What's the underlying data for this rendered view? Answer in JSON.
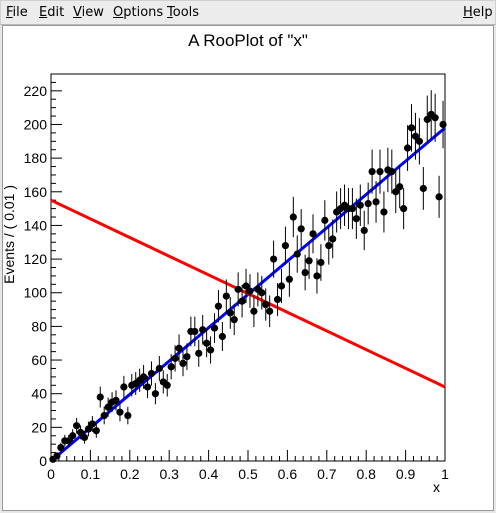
{
  "menubar": {
    "items": [
      {
        "label": "File",
        "accel": "F",
        "rest": "ile"
      },
      {
        "label": "Edit",
        "accel": "E",
        "rest": "dit"
      },
      {
        "label": "View",
        "accel": "V",
        "rest": "iew"
      },
      {
        "label": "Options",
        "accel": "O",
        "rest": "ptions"
      },
      {
        "label": "Tools",
        "accel": "T",
        "rest": "ools"
      }
    ],
    "help": {
      "label": "Help",
      "accel": "H",
      "rest": "elp"
    }
  },
  "chart_data": {
    "type": "scatter",
    "title": "A RooPlot of \"x\"",
    "xlabel": "x",
    "ylabel": "Events / ( 0.01 )",
    "xlim": [
      0,
      1
    ],
    "ylim": [
      0,
      230
    ],
    "x_ticks": [
      "0",
      "0.1",
      "0.2",
      "0.3",
      "0.4",
      "0.5",
      "0.6",
      "0.7",
      "0.8",
      "0.9",
      "1"
    ],
    "y_ticks": [
      "0",
      "20",
      "40",
      "60",
      "80",
      "100",
      "120",
      "140",
      "160",
      "180",
      "200",
      "220"
    ],
    "grid": false,
    "series": [
      {
        "kind": "points_with_errors",
        "color": "#000000",
        "x": [
          0.005,
          0.015,
          0.025,
          0.035,
          0.045,
          0.055,
          0.065,
          0.075,
          0.085,
          0.095,
          0.105,
          0.115,
          0.125,
          0.135,
          0.145,
          0.155,
          0.165,
          0.175,
          0.185,
          0.195,
          0.205,
          0.215,
          0.225,
          0.235,
          0.245,
          0.255,
          0.265,
          0.275,
          0.285,
          0.295,
          0.305,
          0.315,
          0.325,
          0.335,
          0.345,
          0.355,
          0.365,
          0.375,
          0.385,
          0.395,
          0.405,
          0.415,
          0.425,
          0.435,
          0.445,
          0.455,
          0.465,
          0.475,
          0.485,
          0.495,
          0.505,
          0.515,
          0.525,
          0.535,
          0.545,
          0.555,
          0.565,
          0.575,
          0.585,
          0.595,
          0.605,
          0.615,
          0.625,
          0.635,
          0.645,
          0.655,
          0.665,
          0.675,
          0.685,
          0.695,
          0.705,
          0.715,
          0.725,
          0.735,
          0.745,
          0.755,
          0.765,
          0.775,
          0.785,
          0.795,
          0.805,
          0.815,
          0.825,
          0.835,
          0.845,
          0.855,
          0.865,
          0.875,
          0.885,
          0.895,
          0.905,
          0.915,
          0.925,
          0.935,
          0.945,
          0.955,
          0.965,
          0.975,
          0.985,
          0.995
        ],
        "y": [
          1,
          3,
          8,
          12,
          12,
          15,
          21,
          17,
          14,
          19,
          22,
          18,
          38,
          27,
          32,
          35,
          36,
          29,
          44,
          27,
          45,
          46,
          48,
          50,
          44,
          52,
          40,
          55,
          47,
          45,
          56,
          61,
          67,
          58,
          62,
          77,
          77,
          64,
          78,
          70,
          66,
          79,
          92,
          74,
          98,
          88,
          84,
          102,
          95,
          104,
          101,
          89,
          102,
          100,
          93,
          89,
          120,
          96,
          104,
          128,
          108,
          145,
          123,
          138,
          112,
          119,
          135,
          110,
          118,
          143,
          128,
          132,
          148,
          150,
          152,
          150,
          150,
          144,
          152,
          137,
          153,
          172,
          154,
          172,
          148,
          173,
          172,
          160,
          163,
          150,
          186,
          198,
          193,
          190,
          162,
          203,
          206,
          204,
          157,
          200
        ],
        "err": [
          1,
          1.7,
          2.8,
          3.5,
          3.5,
          3.9,
          4.6,
          4.1,
          3.7,
          4.4,
          4.7,
          4.2,
          6.2,
          5.2,
          5.7,
          5.9,
          6,
          5.4,
          6.6,
          5.2,
          6.7,
          6.8,
          6.9,
          7.1,
          6.6,
          7.2,
          6.3,
          7.4,
          6.9,
          6.7,
          7.5,
          7.8,
          8.2,
          7.6,
          7.9,
          8.8,
          8.8,
          8,
          8.8,
          8.4,
          8.1,
          8.9,
          9.6,
          8.6,
          9.9,
          9.4,
          9.2,
          10.1,
          9.7,
          10.2,
          10,
          9.4,
          10.1,
          10,
          9.6,
          9.4,
          11,
          9.8,
          10.2,
          11.3,
          10.4,
          12,
          11.1,
          11.7,
          10.6,
          10.9,
          11.6,
          10.5,
          10.9,
          12,
          11.3,
          11.5,
          12.2,
          12.2,
          12.3,
          12.2,
          12.2,
          12,
          12.3,
          11.7,
          12.4,
          13.1,
          12.4,
          13.1,
          12.2,
          13.2,
          13.1,
          12.6,
          12.8,
          12.2,
          13.6,
          14.1,
          13.9,
          13.8,
          12.7,
          14.2,
          14.4,
          14.3,
          12.5,
          14.1
        ]
      },
      {
        "kind": "line",
        "name": "",
        "color": "#0000ff",
        "x": [
          0,
          1
        ],
        "y": [
          0,
          198
        ]
      },
      {
        "kind": "line",
        "name": "",
        "color": "#ff0000",
        "x": [
          0,
          1
        ],
        "y": [
          155,
          44
        ]
      }
    ]
  }
}
